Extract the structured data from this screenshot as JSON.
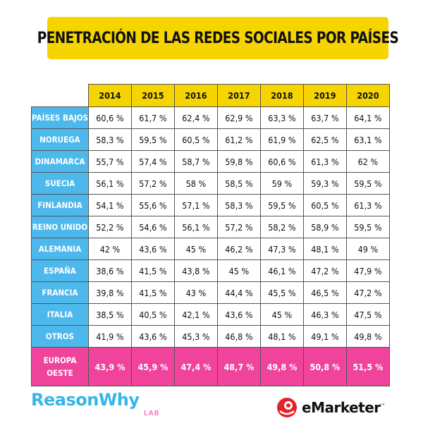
{
  "header": {
    "title": "PENETRACIÓN DE LAS REDES SOCIALES POR PAÍSES"
  },
  "colors": {
    "yellow": "#f5d400",
    "blue": "#4cb8ec",
    "pink": "#f0439c"
  },
  "chart_data": {
    "type": "table",
    "title": "PENETRACIÓN DE LAS REDES SOCIALES POR PAÍSES",
    "columns": [
      "2014",
      "2015",
      "2016",
      "2017",
      "2018",
      "2019",
      "2020"
    ],
    "rows": [
      {
        "label": "PAÍSES BAJOS",
        "values": [
          "60,6 %",
          "61,7 %",
          "62,4 %",
          "62,9 %",
          "63,3 %",
          "63,7 %",
          "64,1 %"
        ]
      },
      {
        "label": "NORUEGA",
        "values": [
          "58,3 %",
          "59,5 %",
          "60,5 %",
          "61,2 %",
          "61,9 %",
          "62,5 %",
          "63,1 %"
        ]
      },
      {
        "label": "DINAMARCA",
        "values": [
          "55,7 %",
          "57,4 %",
          "58,7 %",
          "59,8 %",
          "60,6 %",
          "61,3 %",
          "62 %"
        ]
      },
      {
        "label": "SUECIA",
        "values": [
          "56,1 %",
          "57,2 %",
          "58 %",
          "58,5 %",
          "59 %",
          "59,3 %",
          "59,5 %"
        ]
      },
      {
        "label": "FINLANDIA",
        "values": [
          "54,1 %",
          "55,6 %",
          "57,1 %",
          "58,3 %",
          "59,5 %",
          "60,5 %",
          "61,3 %"
        ]
      },
      {
        "label": "REINO UNIDO",
        "values": [
          "52,2 %",
          "54,6 %",
          "56,1 %",
          "57,2 %",
          "58,2 %",
          "58,9 %",
          "59,5 %"
        ]
      },
      {
        "label": "ALEMANIA",
        "values": [
          "42 %",
          "43,6 %",
          "45 %",
          "46,2 %",
          "47,3 %",
          "48,1 %",
          "49 %"
        ]
      },
      {
        "label": "ESPAÑA",
        "values": [
          "38,6 %",
          "41,5 %",
          "43,8 %",
          "45 %",
          "46,1 %",
          "47,2 %",
          "47,9 %"
        ]
      },
      {
        "label": "FRANCIA",
        "values": [
          "39,8 %",
          "41,5 %",
          "43 %",
          "44,4 %",
          "45,5 %",
          "46,5 %",
          "47,2 %"
        ]
      },
      {
        "label": "ITALIA",
        "values": [
          "38,5 %",
          "40,5 %",
          "42,1 %",
          "43,6 %",
          "45 %",
          "46,3 %",
          "47,5 %"
        ]
      },
      {
        "label": "OTROS",
        "values": [
          "41,9 %",
          "43,6 %",
          "45,3 %",
          "46,8 %",
          "48,1 %",
          "49,1 %",
          "49,8 %"
        ]
      }
    ],
    "total": {
      "label": "EUROPA OESTE",
      "values": [
        "43,9 %",
        "45,9 %",
        "47,4 %",
        "48,7 %",
        "49,8 %",
        "50,8 %",
        "51,5 %"
      ]
    }
  },
  "logos": {
    "left": {
      "text": "ReasonWhy",
      "sub": "LAB"
    },
    "right": {
      "text": "eMarketer",
      "mark": "™"
    }
  }
}
